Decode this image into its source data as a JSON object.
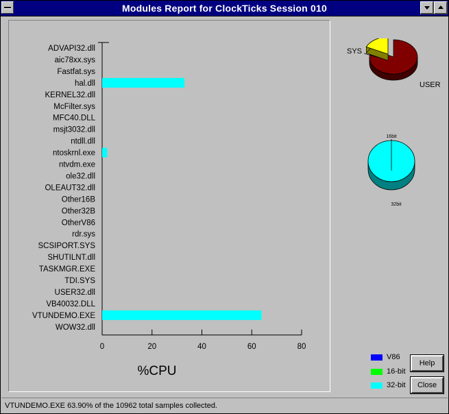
{
  "window": {
    "title": "Modules Report for ClockTicks  Session 010"
  },
  "chart_data": {
    "type": "bar",
    "orientation": "horizontal",
    "categories": [
      "ADVAPI32.dll",
      "aic78xx.sys",
      "Fastfat.sys",
      "hal.dll",
      "KERNEL32.dll",
      "McFilter.sys",
      "MFC40.DLL",
      "msjt3032.dll",
      "ntdll.dll",
      "ntoskrnl.exe",
      "ntvdm.exe",
      "ole32.dll",
      "OLEAUT32.dll",
      "Other16B",
      "Other32B",
      "OtherV86",
      "rdr.sys",
      "SCSIPORT.SYS",
      "SHUTILNT.dll",
      "TASKMGR.EXE",
      "TDI.SYS",
      "USER32.dll",
      "VB40032.DLL",
      "VTUNDEMO.EXE",
      "WOW32.dll"
    ],
    "series": [
      {
        "name": "32-bit",
        "values": [
          0,
          0,
          0,
          33,
          0,
          0,
          0,
          0,
          0,
          2,
          0,
          0,
          0,
          0,
          0,
          0,
          0,
          0,
          0,
          0,
          0,
          0,
          0,
          63.9,
          0
        ]
      }
    ],
    "xlabel": "%CPU",
    "xlim": [
      0,
      80
    ],
    "xticks": [
      "0",
      "20",
      "40",
      "60",
      "80"
    ],
    "grid": false,
    "legend_placement": "bottom-right",
    "legend": [
      {
        "label": "V86",
        "color": "#0000ff"
      },
      {
        "label": "16-bit",
        "color": "#00ff00"
      },
      {
        "label": "32-bit",
        "color": "#00ffff"
      }
    ],
    "bar_color": "#00ffff"
  },
  "pies": {
    "sys_user": {
      "slices": [
        {
          "label": "SYS",
          "fraction": 0.18,
          "color": "#ffff00"
        },
        {
          "label": "USER",
          "fraction": 0.82,
          "color": "#800000"
        }
      ]
    },
    "bitness": {
      "slices": [
        {
          "label": "16bit",
          "fraction": 0.0,
          "color": "#00ff00"
        },
        {
          "label": "32bit",
          "fraction": 1.0,
          "color": "#00ffff"
        }
      ]
    }
  },
  "buttons": {
    "help": "Help",
    "close": "Close"
  },
  "status": {
    "text": "VTUNDEMO.EXE  63.90% of the  10962 total samples collected."
  }
}
